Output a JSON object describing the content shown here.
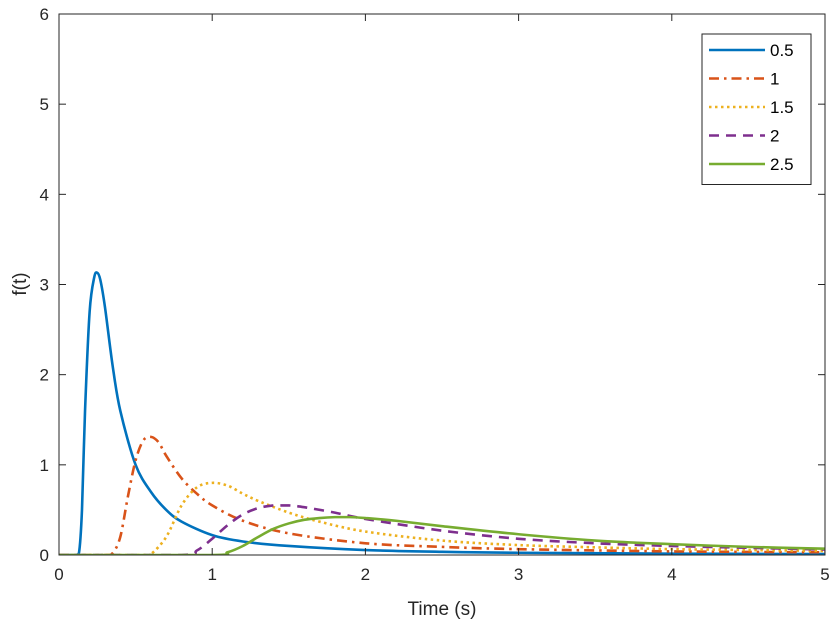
{
  "chart_data": {
    "type": "line",
    "title": "",
    "xlabel": "Time (s)",
    "ylabel": "f(t)",
    "xlim": [
      0,
      5
    ],
    "ylim": [
      0,
      6
    ],
    "xticks": [
      "0",
      "1",
      "2",
      "3",
      "4",
      "5"
    ],
    "yticks": [
      "0",
      "1",
      "2",
      "3",
      "4",
      "5",
      "6"
    ],
    "grid": false,
    "legend_position": "top-right",
    "series": [
      {
        "name": "0.5",
        "color": "#0072BD",
        "style": "solid",
        "x": [
          0,
          0.1,
          0.13,
          0.15,
          0.17,
          0.2,
          0.23,
          0.25,
          0.27,
          0.3,
          0.35,
          0.4,
          0.5,
          0.6,
          0.7,
          0.8,
          1.0,
          1.2,
          1.5,
          2.0,
          2.5,
          3.0,
          4.0,
          5.0
        ],
        "y": [
          0,
          0,
          0.02,
          0.5,
          1.6,
          2.7,
          3.08,
          3.13,
          3.05,
          2.75,
          2.1,
          1.6,
          1.0,
          0.7,
          0.5,
          0.37,
          0.22,
          0.15,
          0.1,
          0.055,
          0.035,
          0.025,
          0.015,
          0.01
        ]
      },
      {
        "name": "1",
        "color": "#D95319",
        "style": "dashdot",
        "x": [
          0,
          0.3,
          0.35,
          0.4,
          0.45,
          0.5,
          0.55,
          0.6,
          0.65,
          0.7,
          0.8,
          0.9,
          1.0,
          1.2,
          1.5,
          2.0,
          2.5,
          3.0,
          4.0,
          5.0
        ],
        "y": [
          0,
          0,
          0.02,
          0.2,
          0.65,
          1.05,
          1.27,
          1.31,
          1.25,
          1.1,
          0.85,
          0.68,
          0.55,
          0.38,
          0.24,
          0.13,
          0.09,
          0.065,
          0.04,
          0.03
        ]
      },
      {
        "name": "1.5",
        "color": "#EDB120",
        "style": "dotted",
        "x": [
          0,
          0.55,
          0.6,
          0.7,
          0.8,
          0.9,
          1.0,
          1.1,
          1.2,
          1.3,
          1.5,
          1.7,
          2.0,
          2.5,
          3.0,
          3.5,
          4.0,
          4.5,
          5.0
        ],
        "y": [
          0,
          0,
          0.01,
          0.2,
          0.55,
          0.75,
          0.8,
          0.77,
          0.68,
          0.6,
          0.47,
          0.37,
          0.26,
          0.16,
          0.11,
          0.085,
          0.065,
          0.055,
          0.045
        ]
      },
      {
        "name": "2",
        "color": "#7E2F8E",
        "style": "dashed",
        "x": [
          0,
          0.8,
          0.9,
          1.0,
          1.1,
          1.2,
          1.3,
          1.4,
          1.5,
          1.6,
          1.8,
          2.0,
          2.5,
          3.0,
          3.5,
          4.0,
          4.5,
          5.0
        ],
        "y": [
          0,
          0,
          0.05,
          0.18,
          0.33,
          0.45,
          0.52,
          0.55,
          0.55,
          0.53,
          0.47,
          0.4,
          0.27,
          0.18,
          0.13,
          0.1,
          0.08,
          0.06
        ]
      },
      {
        "name": "2.5",
        "color": "#77AC30",
        "style": "solid",
        "x": [
          0,
          1.0,
          1.1,
          1.2,
          1.3,
          1.4,
          1.5,
          1.6,
          1.7,
          1.8,
          1.9,
          2.0,
          2.2,
          2.5,
          3.0,
          3.5,
          4.0,
          4.5,
          5.0
        ],
        "y": [
          0,
          0,
          0.03,
          0.1,
          0.2,
          0.29,
          0.35,
          0.39,
          0.41,
          0.42,
          0.42,
          0.41,
          0.38,
          0.32,
          0.23,
          0.16,
          0.12,
          0.09,
          0.07
        ]
      }
    ]
  }
}
